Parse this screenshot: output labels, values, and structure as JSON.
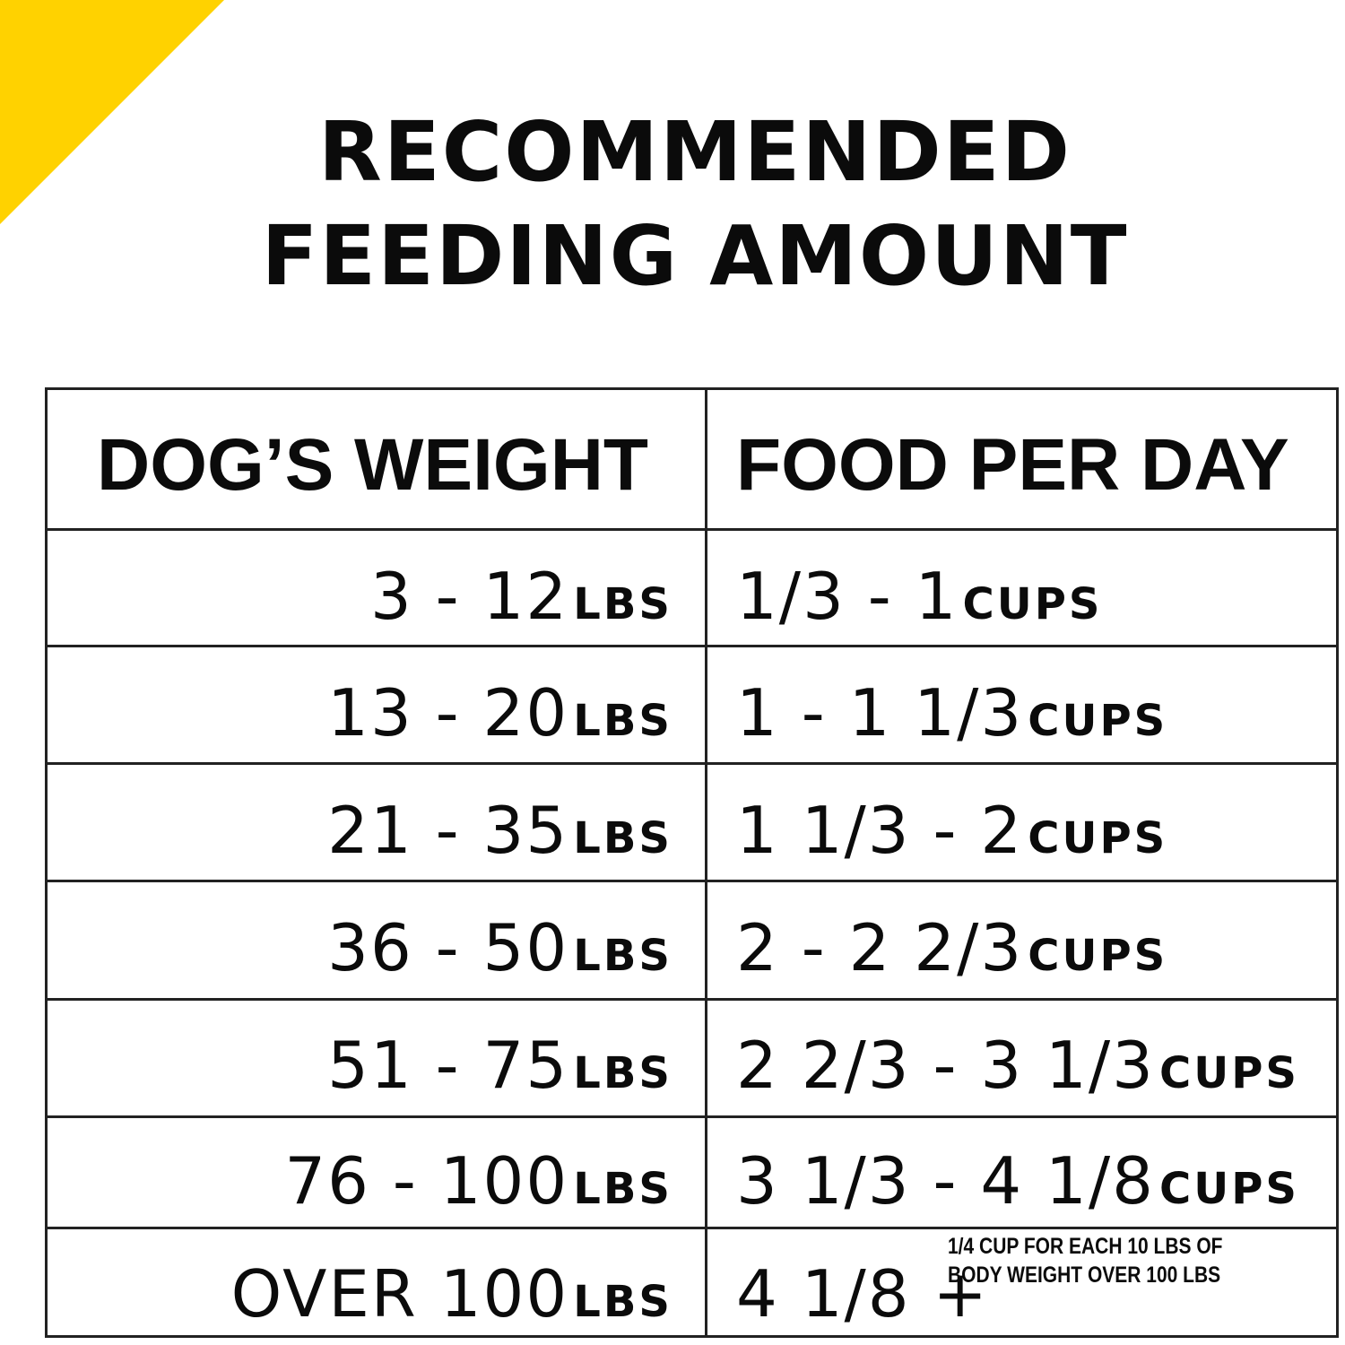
{
  "title": {
    "line1": "RECOMMENDED",
    "line2": "FEEDING AMOUNT"
  },
  "table": {
    "headers": [
      "DOG’S WEIGHT",
      "FOOD PER DAY"
    ],
    "rows": [
      {
        "weight": "3 - 12",
        "weight_unit": "LBS",
        "food": "1/3 - 1",
        "food_unit": "CUPS"
      },
      {
        "weight": "13 - 20",
        "weight_unit": "LBS",
        "food": "1 - 1 1/3",
        "food_unit": "CUPS"
      },
      {
        "weight": "21 - 35",
        "weight_unit": "LBS",
        "food": "1 1/3 - 2",
        "food_unit": "CUPS"
      },
      {
        "weight": "36 - 50",
        "weight_unit": "LBS",
        "food": "2 - 2 2/3",
        "food_unit": "CUPS"
      },
      {
        "weight": "51 - 75",
        "weight_unit": "LBS",
        "food": "2 2/3 - 3 1/3",
        "food_unit": "CUPS"
      },
      {
        "weight": "76 - 100",
        "weight_unit": "LBS",
        "food": "3 1/3 - 4 1/8",
        "food_unit": "CUPS"
      },
      {
        "weight": "OVER 100",
        "weight_unit": "LBS",
        "food": "4 1/8 +",
        "food_note": "1/4 CUP FOR EACH 10 LBS OF BODY WEIGHT OVER 100 LBS"
      }
    ]
  },
  "colors": {
    "accent": "#ffd200",
    "text": "#0b0b0b",
    "lines": "#222222"
  }
}
